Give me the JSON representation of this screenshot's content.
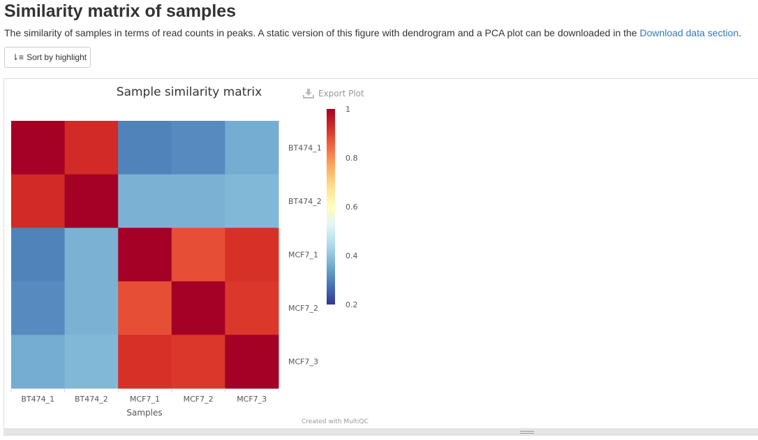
{
  "page": {
    "title": "Similarity matrix of samples",
    "description_text": "The similarity of samples in terms of read counts in peaks. A static version of this figure with dendrogram and a PCA plot can be downloaded in the ",
    "description_link": "Download data section",
    "description_end": ".",
    "sort_button_label": "Sort by highlight",
    "export_label": "Export Plot",
    "credit": "Created with MultiQC"
  },
  "colors": {
    "link": "#337ab7",
    "scale": [
      "#313695",
      "#4575b4",
      "#74add1",
      "#abd9e9",
      "#e0f3f8",
      "#ffffbf",
      "#fee090",
      "#fdae61",
      "#f46d43",
      "#d73027",
      "#a50026"
    ]
  },
  "chart_data": {
    "type": "heatmap",
    "title": "Sample similarity matrix",
    "xlabel": "Samples",
    "ylabel": "",
    "x_categories": [
      "BT474_1",
      "BT474_2",
      "MCF7_1",
      "MCF7_2",
      "MCF7_3"
    ],
    "y_categories": [
      "BT474_1",
      "BT474_2",
      "MCF7_1",
      "MCF7_2",
      "MCF7_3"
    ],
    "values": [
      [
        1.0,
        0.93,
        0.3,
        0.31,
        0.36
      ],
      [
        0.93,
        1.0,
        0.37,
        0.37,
        0.38
      ],
      [
        0.3,
        0.37,
        1.0,
        0.88,
        0.92
      ],
      [
        0.31,
        0.37,
        0.88,
        1.0,
        0.91
      ],
      [
        0.36,
        0.38,
        0.92,
        0.91,
        1.0
      ]
    ],
    "colorbar": {
      "min": 0.2,
      "max": 1,
      "ticks": [
        1,
        0.8,
        0.6,
        0.4,
        0.2
      ]
    }
  }
}
